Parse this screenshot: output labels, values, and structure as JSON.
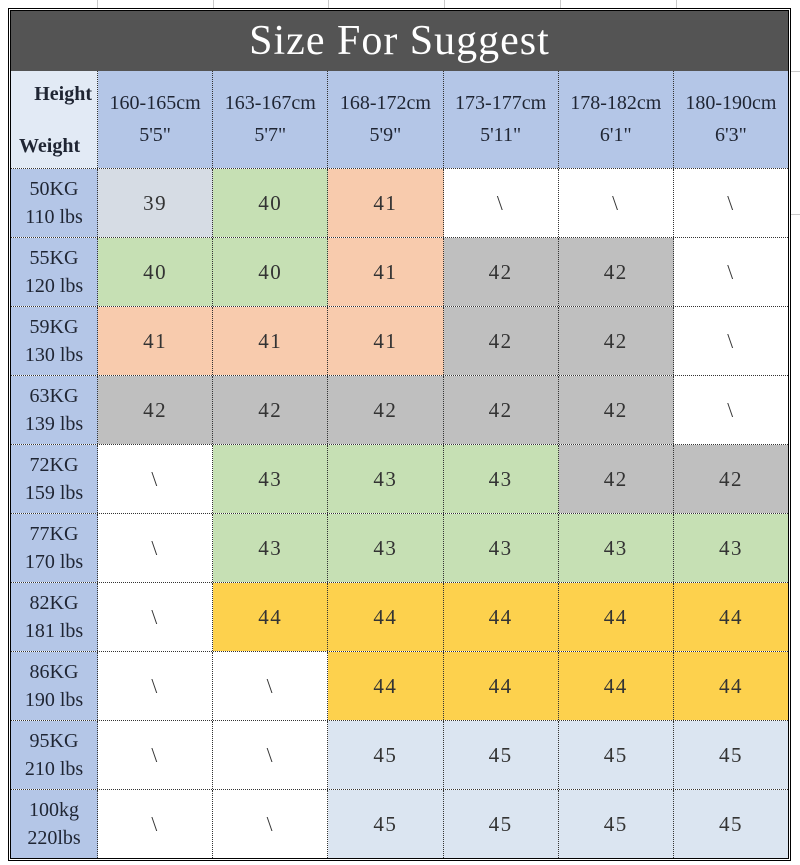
{
  "title": "Size For Suggest",
  "corner": {
    "top": "Height",
    "bottom": "Weight"
  },
  "columns": [
    {
      "line1": "160-165cm",
      "line2": "5'5\""
    },
    {
      "line1": "163-167cm",
      "line2": "5'7\""
    },
    {
      "line1": "168-172cm",
      "line2": "5'9\""
    },
    {
      "line1": "173-177cm",
      "line2": "5'11\""
    },
    {
      "line1": "178-182cm",
      "line2": "6'1\""
    },
    {
      "line1": "180-190cm",
      "line2": "6'3\""
    }
  ],
  "rows": [
    {
      "kg": "50KG",
      "lbs": "110 lbs",
      "cells": [
        {
          "v": "39",
          "c": "grayblue"
        },
        {
          "v": "40",
          "c": "green"
        },
        {
          "v": "41",
          "c": "salmon"
        },
        {
          "v": "\\",
          "c": "white"
        },
        {
          "v": "\\",
          "c": "white"
        },
        {
          "v": "\\",
          "c": "white"
        }
      ]
    },
    {
      "kg": "55KG",
      "lbs": "120 lbs",
      "cells": [
        {
          "v": "40",
          "c": "green"
        },
        {
          "v": "40",
          "c": "green"
        },
        {
          "v": "41",
          "c": "salmon"
        },
        {
          "v": "42",
          "c": "gray"
        },
        {
          "v": "42",
          "c": "gray"
        },
        {
          "v": "\\",
          "c": "white"
        }
      ]
    },
    {
      "kg": "59KG",
      "lbs": "130 lbs",
      "cells": [
        {
          "v": "41",
          "c": "salmon"
        },
        {
          "v": "41",
          "c": "salmon"
        },
        {
          "v": "41",
          "c": "salmon"
        },
        {
          "v": "42",
          "c": "gray"
        },
        {
          "v": "42",
          "c": "gray"
        },
        {
          "v": "\\",
          "c": "white"
        }
      ]
    },
    {
      "kg": "63KG",
      "lbs": "139 lbs",
      "cells": [
        {
          "v": "42",
          "c": "gray"
        },
        {
          "v": "42",
          "c": "gray"
        },
        {
          "v": "42",
          "c": "gray"
        },
        {
          "v": "42",
          "c": "gray"
        },
        {
          "v": "42",
          "c": "gray"
        },
        {
          "v": "\\",
          "c": "white"
        }
      ]
    },
    {
      "kg": "72KG",
      "lbs": "159 lbs",
      "cells": [
        {
          "v": "\\",
          "c": "white"
        },
        {
          "v": "43",
          "c": "green"
        },
        {
          "v": "43",
          "c": "green"
        },
        {
          "v": "43",
          "c": "green"
        },
        {
          "v": "42",
          "c": "gray"
        },
        {
          "v": "42",
          "c": "gray"
        }
      ]
    },
    {
      "kg": "77KG",
      "lbs": "170 lbs",
      "cells": [
        {
          "v": "\\",
          "c": "white"
        },
        {
          "v": "43",
          "c": "green"
        },
        {
          "v": "43",
          "c": "green"
        },
        {
          "v": "43",
          "c": "green"
        },
        {
          "v": "43",
          "c": "green"
        },
        {
          "v": "43",
          "c": "green"
        }
      ]
    },
    {
      "kg": "82KG",
      "lbs": "181 lbs",
      "cells": [
        {
          "v": "\\",
          "c": "white"
        },
        {
          "v": "44",
          "c": "yellow"
        },
        {
          "v": "44",
          "c": "yellow"
        },
        {
          "v": "44",
          "c": "yellow"
        },
        {
          "v": "44",
          "c": "yellow"
        },
        {
          "v": "44",
          "c": "yellow"
        }
      ]
    },
    {
      "kg": "86KG",
      "lbs": "190 lbs",
      "cells": [
        {
          "v": "\\",
          "c": "white"
        },
        {
          "v": "\\",
          "c": "white"
        },
        {
          "v": "44",
          "c": "yellow"
        },
        {
          "v": "44",
          "c": "yellow"
        },
        {
          "v": "44",
          "c": "yellow"
        },
        {
          "v": "44",
          "c": "yellow"
        }
      ]
    },
    {
      "kg": "95KG",
      "lbs": "210 lbs",
      "cells": [
        {
          "v": "\\",
          "c": "white"
        },
        {
          "v": "\\",
          "c": "white"
        },
        {
          "v": "45",
          "c": "blue"
        },
        {
          "v": "45",
          "c": "blue"
        },
        {
          "v": "45",
          "c": "blue"
        },
        {
          "v": "45",
          "c": "blue"
        }
      ]
    },
    {
      "kg": "100kg",
      "lbs": "220lbs",
      "cells": [
        {
          "v": "\\",
          "c": "white"
        },
        {
          "v": "\\",
          "c": "white"
        },
        {
          "v": "45",
          "c": "blue"
        },
        {
          "v": "45",
          "c": "blue"
        },
        {
          "v": "45",
          "c": "blue"
        },
        {
          "v": "45",
          "c": "blue"
        }
      ]
    }
  ],
  "colors": {
    "title_bg": "#545454",
    "title_text": "#ffffff",
    "header_bg": "#b4c6e7",
    "corner_bg": "#e2eaf5",
    "header_text": "#1f2533",
    "cell_text": "#333333",
    "white": "#ffffff",
    "grayblue": "#d6dce4",
    "green": "#c6e0b4",
    "salmon": "#f8cbad",
    "gray": "#bfbfbf",
    "yellow": "#fdd14d",
    "blue": "#dbe5f1"
  },
  "chart_data": {
    "type": "table",
    "title": "Size For Suggest",
    "col_axis": "Height",
    "row_axis": "Weight",
    "columns": [
      "160-165cm 5'5\"",
      "163-167cm 5'7\"",
      "168-172cm 5'9\"",
      "173-177cm 5'11\"",
      "178-182cm 6'1\"",
      "180-190cm 6'3\""
    ],
    "rows": [
      "50KG 110 lbs",
      "55KG 120 lbs",
      "59KG 130 lbs",
      "63KG 139 lbs",
      "72KG 159 lbs",
      "77KG 170 lbs",
      "82KG 181 lbs",
      "86KG 190 lbs",
      "95KG 210 lbs",
      "100kg 220lbs"
    ],
    "values": [
      [
        "39",
        "40",
        "41",
        "\\",
        "\\",
        "\\"
      ],
      [
        "40",
        "40",
        "41",
        "42",
        "42",
        "\\"
      ],
      [
        "41",
        "41",
        "41",
        "42",
        "42",
        "\\"
      ],
      [
        "42",
        "42",
        "42",
        "42",
        "42",
        "\\"
      ],
      [
        "\\",
        "43",
        "43",
        "43",
        "42",
        "42"
      ],
      [
        "\\",
        "43",
        "43",
        "43",
        "43",
        "43"
      ],
      [
        "\\",
        "44",
        "44",
        "44",
        "44",
        "44"
      ],
      [
        "\\",
        "\\",
        "44",
        "44",
        "44",
        "44"
      ],
      [
        "\\",
        "\\",
        "45",
        "45",
        "45",
        "45"
      ],
      [
        "\\",
        "\\",
        "45",
        "45",
        "45",
        "45"
      ]
    ]
  }
}
